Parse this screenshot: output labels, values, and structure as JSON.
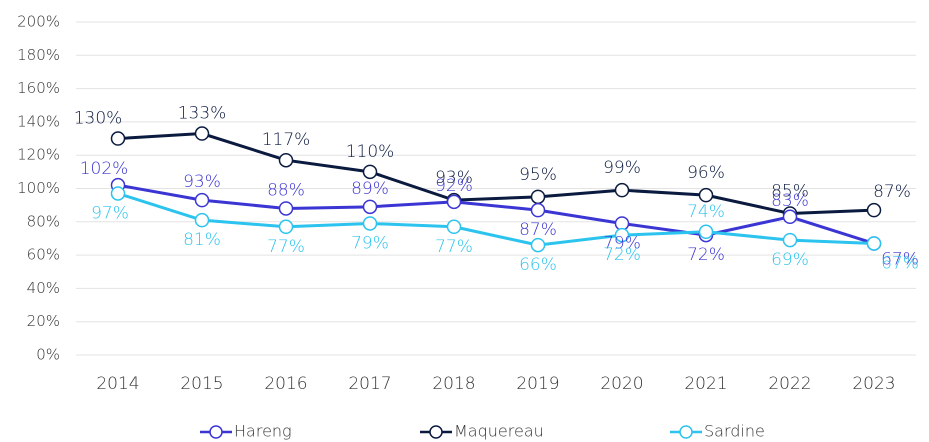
{
  "chart_data": {
    "type": "line",
    "categories": [
      "2014",
      "2015",
      "2016",
      "2017",
      "2018",
      "2019",
      "2020",
      "2021",
      "2022",
      "2023"
    ],
    "series": [
      {
        "name": "Hareng",
        "color": "#3b35d4",
        "values": [
          102,
          93,
          88,
          89,
          92,
          87,
          79,
          72,
          83,
          67
        ],
        "value_labels": [
          "102%",
          "93%",
          "88%",
          "89%",
          "92%",
          "87%",
          "79%",
          "72%",
          "83%",
          "67%"
        ]
      },
      {
        "name": "Maquereau",
        "color": "#0b1a3f",
        "values": [
          130,
          133,
          117,
          110,
          93,
          95,
          99,
          96,
          85,
          87
        ],
        "value_labels": [
          "130%",
          "133%",
          "117%",
          "110%",
          "93%",
          "95%",
          "99%",
          "96%",
          "85%",
          "87%"
        ]
      },
      {
        "name": "Sardine",
        "color": "#2cc3ee",
        "values": [
          97,
          81,
          77,
          79,
          77,
          66,
          72,
          74,
          69,
          67
        ],
        "value_labels": [
          "97%",
          "81%",
          "77%",
          "79%",
          "77%",
          "66%",
          "72%",
          "74%",
          "69%",
          "67%"
        ]
      }
    ],
    "ylim": [
      0,
      200
    ],
    "yticks": [
      {
        "value": 0,
        "label": "0%"
      },
      {
        "value": 20,
        "label": "20%"
      },
      {
        "value": 40,
        "label": "40%"
      },
      {
        "value": 60,
        "label": "60%"
      },
      {
        "value": 80,
        "label": "80%"
      },
      {
        "value": 100,
        "label": "100%"
      },
      {
        "value": 120,
        "label": "120%"
      },
      {
        "value": 140,
        "label": "140%"
      },
      {
        "value": 160,
        "label": "160%"
      },
      {
        "value": 180,
        "label": "180%"
      },
      {
        "value": 200,
        "label": "200%"
      }
    ],
    "grid": true,
    "legend": "bottom"
  }
}
